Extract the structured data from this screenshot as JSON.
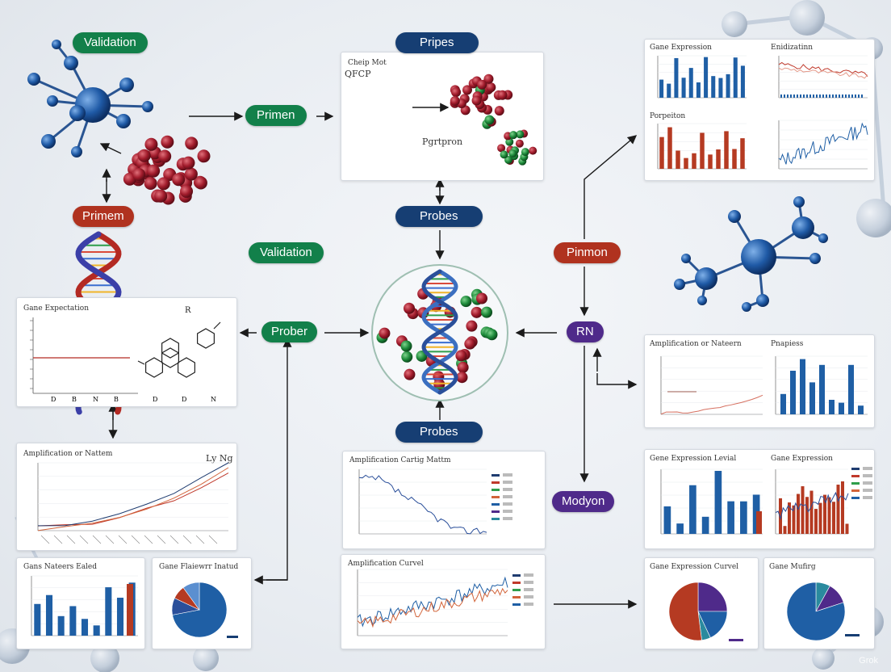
{
  "labels": {
    "validation_top": "Validation",
    "pripes": "Pripes",
    "primen": "Primen",
    "primem": "Primem",
    "probes_mid": "Probes",
    "validation_mid": "Validation",
    "pinmon": "Pinmon",
    "prober": "Prober",
    "rn": "RN",
    "probes_bottom": "Probes",
    "modyon": "Modyon"
  },
  "panels": {
    "top_center": {
      "line1": "Cheip Mot",
      "line2": "QFCP",
      "arrow_label": "Pgrtpron"
    },
    "top_right": {
      "title_a": "Gane Expression",
      "title_b": "Enidizatinn",
      "title_c": "Porpeiton"
    },
    "left_mid": {
      "title": "Gane Expectation",
      "label_r": "R",
      "ticks": [
        "D",
        "B",
        "N",
        "B"
      ],
      "ticks_b": [
        "D",
        "D",
        "N"
      ]
    },
    "left_amp": {
      "title": "Amplification or Nattem",
      "corner": "Ly Ng"
    },
    "bottom_left_bar": {
      "title": "Gans Nateers Ealed"
    },
    "bottom_left_pie": {
      "title": "Gane Flaiewrr Inatud"
    },
    "center_amp": {
      "title": "Amplification Cartig Mattm"
    },
    "center_curve": {
      "title": "Amplification Curvel"
    },
    "right_mid": {
      "title_a": "Amplification or Nateern",
      "title_b": "Pnapiess"
    },
    "right_lower": {
      "title_a": "Gene Expression Levial",
      "title_b": "Gane Expression"
    },
    "bottom_right": {
      "title_a": "Gane Expression Curvel",
      "title_b": "Gane Mufirg"
    }
  },
  "colors": {
    "green": "#12804a",
    "red": "#b0321f",
    "navy": "#163e73",
    "purple": "#4f2a8a",
    "bar_blue": "#1f5fa5",
    "bar_red": "#b53a22",
    "line_orange": "#d2643a"
  },
  "watermark": "Grok"
}
